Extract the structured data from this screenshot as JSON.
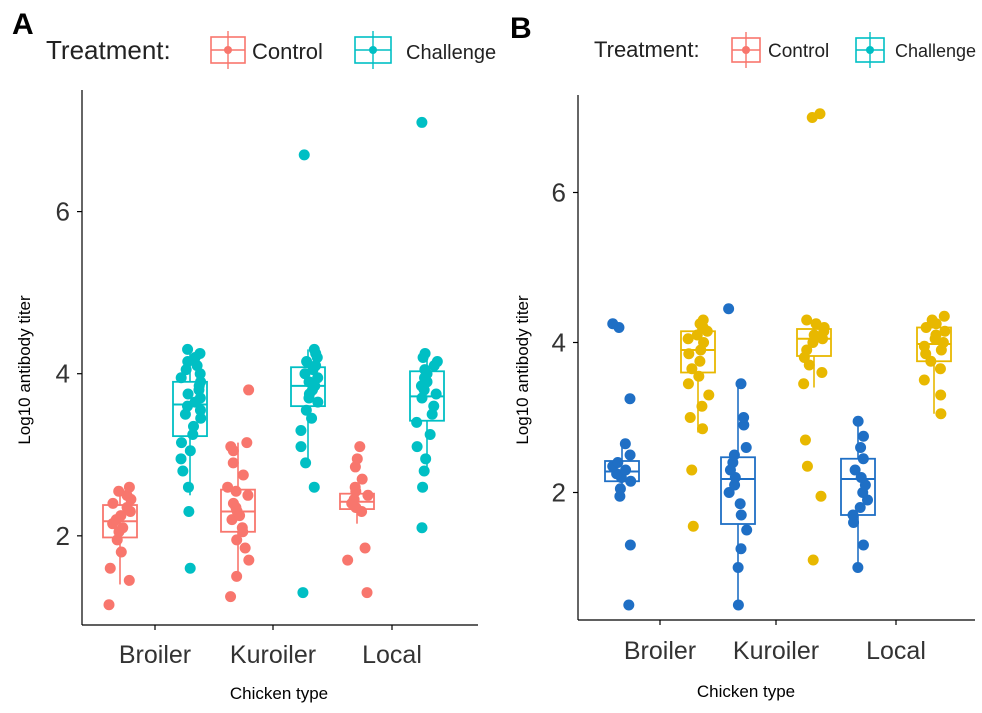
{
  "panels": [
    {
      "letter": "A",
      "legend_title": "Treatment:",
      "legend_items": [
        {
          "label": "Control",
          "color": "#F8766D"
        },
        {
          "label": "Challenge",
          "color": "#00BFC4"
        }
      ]
    },
    {
      "letter": "B",
      "legend_title": "Treatment:",
      "legend_items": [
        {
          "label": "Control",
          "color": "#F8766D"
        },
        {
          "label": "Challenge",
          "color": "#00BFC4"
        }
      ]
    }
  ],
  "chart_data": [
    {
      "type": "box",
      "panel": "A",
      "xlabel": "Chicken type",
      "ylabel": "Log10 antibody titer",
      "categories": [
        "Broiler",
        "Kuroiler",
        "Local"
      ],
      "ylim": [
        0.9,
        7.5
      ],
      "yticks": [
        2,
        4,
        6
      ],
      "grid": false,
      "legend_position": "top",
      "series": [
        {
          "name": "Control",
          "color": "#F8766D",
          "boxes": [
            {
              "q1": 1.98,
              "median": 2.18,
              "q3": 2.38,
              "whisker_low": 1.4,
              "whisker_high": 2.6
            },
            {
              "q1": 2.05,
              "median": 2.3,
              "q3": 2.57,
              "whisker_low": 1.5,
              "whisker_high": 3.15
            },
            {
              "q1": 2.33,
              "median": 2.42,
              "q3": 2.52,
              "whisker_low": 2.15,
              "whisker_high": 2.65
            }
          ],
          "points": [
            [
              1.15,
              1.45,
              1.6,
              1.8,
              1.95,
              2.05,
              2.1,
              2.15,
              2.2,
              2.25,
              2.3,
              2.35,
              2.4,
              2.45,
              2.5,
              2.55,
              2.6
            ],
            [
              1.25,
              1.5,
              1.7,
              1.85,
              1.95,
              2.05,
              2.1,
              2.2,
              2.25,
              2.3,
              2.35,
              2.4,
              2.5,
              2.55,
              2.6,
              2.75,
              2.9,
              3.05,
              3.1,
              3.15,
              3.8
            ],
            [
              1.3,
              1.7,
              1.85,
              2.3,
              2.35,
              2.4,
              2.45,
              2.5,
              2.55,
              2.6,
              2.7,
              2.85,
              2.95,
              3.1
            ]
          ]
        },
        {
          "name": "Challenge",
          "color": "#00BFC4",
          "boxes": [
            {
              "q1": 3.23,
              "median": 3.62,
              "q3": 3.9,
              "whisker_low": 2.5,
              "whisker_high": 4.3
            },
            {
              "q1": 3.6,
              "median": 3.85,
              "q3": 4.08,
              "whisker_low": 2.9,
              "whisker_high": 4.3
            },
            {
              "q1": 3.42,
              "median": 3.72,
              "q3": 4.03,
              "whisker_low": 2.8,
              "whisker_high": 4.25
            }
          ],
          "points": [
            [
              1.6,
              2.3,
              2.6,
              2.8,
              2.95,
              3.05,
              3.15,
              3.25,
              3.35,
              3.45,
              3.5,
              3.55,
              3.6,
              3.65,
              3.7,
              3.75,
              3.8,
              3.85,
              3.9,
              3.95,
              4.0,
              4.05,
              4.1,
              4.15,
              4.2,
              4.25,
              4.3
            ],
            [
              1.3,
              2.6,
              2.9,
              3.1,
              3.3,
              3.45,
              3.55,
              3.65,
              3.7,
              3.75,
              3.8,
              3.85,
              3.9,
              3.95,
              4.0,
              4.05,
              4.1,
              4.15,
              4.2,
              4.25,
              4.3,
              6.7
            ],
            [
              2.1,
              2.6,
              2.8,
              2.95,
              3.1,
              3.25,
              3.4,
              3.5,
              3.6,
              3.7,
              3.75,
              3.8,
              3.85,
              3.9,
              3.95,
              4.0,
              4.05,
              4.1,
              4.15,
              4.2,
              4.25,
              7.1
            ]
          ]
        }
      ]
    },
    {
      "type": "box",
      "panel": "B",
      "xlabel": "Chicken type",
      "ylabel": "Log10 antibody titer",
      "categories": [
        "Broiler",
        "Kuroiler",
        "Local"
      ],
      "ylim": [
        0.3,
        7.3
      ],
      "yticks": [
        2,
        4,
        6
      ],
      "grid": false,
      "legend_position": "top",
      "series": [
        {
          "name": "Control",
          "color": "#1F6FC5",
          "boxes": [
            {
              "q1": 2.15,
              "median": 2.28,
              "q3": 2.42,
              "whisker_low": 1.95,
              "whisker_high": 2.65
            },
            {
              "q1": 1.58,
              "median": 2.18,
              "q3": 2.47,
              "whisker_low": 0.5,
              "whisker_high": 3.45
            },
            {
              "q1": 1.7,
              "median": 2.18,
              "q3": 2.45,
              "whisker_low": 1.0,
              "whisker_high": 2.95
            }
          ],
          "points": [
            [
              0.5,
              1.3,
              1.95,
              2.05,
              2.15,
              2.2,
              2.25,
              2.3,
              2.35,
              2.4,
              2.5,
              2.65,
              3.25,
              4.2,
              4.25
            ],
            [
              0.5,
              1.0,
              1.25,
              1.5,
              1.7,
              1.85,
              2.0,
              2.1,
              2.2,
              2.3,
              2.4,
              2.5,
              2.6,
              2.9,
              3.0,
              3.45,
              4.45
            ],
            [
              1.0,
              1.3,
              1.6,
              1.7,
              1.8,
              1.9,
              2.0,
              2.1,
              2.2,
              2.3,
              2.45,
              2.6,
              2.75,
              2.95
            ]
          ]
        },
        {
          "name": "Challenge",
          "color": "#E8B800",
          "boxes": [
            {
              "q1": 3.6,
              "median": 3.9,
              "q3": 4.15,
              "whisker_low": 2.8,
              "whisker_high": 4.3
            },
            {
              "q1": 3.82,
              "median": 4.05,
              "q3": 4.18,
              "whisker_low": 3.4,
              "whisker_high": 4.3
            },
            {
              "q1": 3.75,
              "median": 3.98,
              "q3": 4.2,
              "whisker_low": 3.05,
              "whisker_high": 4.35
            }
          ],
          "points": [
            [
              1.55,
              2.3,
              2.85,
              3.0,
              3.15,
              3.3,
              3.45,
              3.55,
              3.65,
              3.75,
              3.85,
              3.9,
              4.0,
              4.05,
              4.1,
              4.15,
              4.2,
              4.25,
              4.3
            ],
            [
              1.1,
              1.95,
              2.35,
              2.7,
              3.45,
              3.6,
              3.7,
              3.8,
              3.9,
              4.0,
              4.05,
              4.1,
              4.15,
              4.2,
              4.25,
              4.3,
              7.0,
              7.05
            ],
            [
              3.05,
              3.3,
              3.5,
              3.65,
              3.75,
              3.85,
              3.9,
              3.95,
              4.0,
              4.05,
              4.1,
              4.15,
              4.2,
              4.25,
              4.3,
              4.35
            ]
          ]
        }
      ]
    }
  ]
}
